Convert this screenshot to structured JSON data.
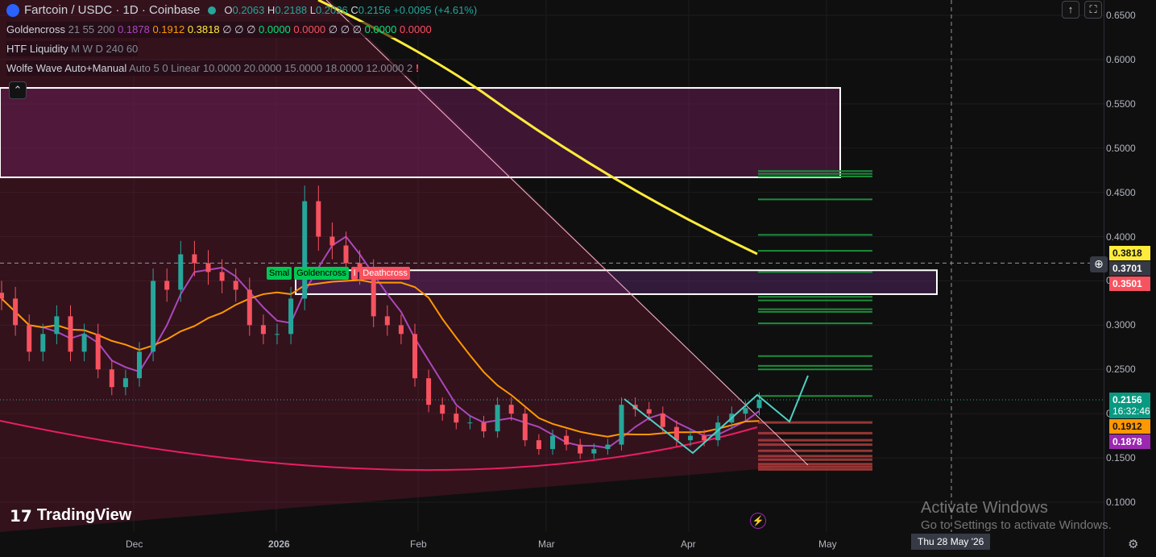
{
  "header": {
    "symbol": "Fartcoin / USDC · 1D · Coinbase",
    "o_label": "O",
    "open": "0.2063",
    "h_label": "H",
    "high": "0.2188",
    "l_label": "L",
    "low": "0.2026",
    "c_label": "C",
    "close": "0.2156",
    "change": "+0.0095 (+4.61%)"
  },
  "indicators": [
    {
      "name": "Goldencross",
      "params": "21 55 200",
      "values": [
        {
          "v": "0.1878",
          "c": "#ab47bc"
        },
        {
          "v": "0.1912",
          "c": "#ff9800"
        },
        {
          "v": "0.3818",
          "c": "#ffeb3b"
        },
        {
          "v": "∅ ∅ ∅",
          "c": "#d1d4dc"
        },
        {
          "v": "0.0000",
          "c": "#00e676"
        },
        {
          "v": "0.0000",
          "c": "#f7525f"
        },
        {
          "v": "∅ ∅ ∅",
          "c": "#d1d4dc"
        },
        {
          "v": "0.0000",
          "c": "#00e676"
        },
        {
          "v": "0.0000",
          "c": "#f7525f"
        }
      ]
    },
    {
      "name": "HTF Liquidity",
      "params": "M W D 240 60"
    },
    {
      "name": "Wolfe Wave Auto+Manual",
      "params": "Auto 5 0 Linear 10.0000 20.0000 15.0000 18.0000 12.0000 2"
    }
  ],
  "price_axis": [
    "0.6500",
    "0.6000",
    "0.5500",
    "0.5000",
    "0.4500",
    "0.4000",
    "0.3500",
    "0.3000",
    "0.2500",
    "0.2000",
    "0.1500",
    "0.1000"
  ],
  "price_tags": [
    {
      "text": "0.3818",
      "price": 0.3818,
      "bg": "#ffeb3b",
      "fg": "#131313"
    },
    {
      "text": "0.3701",
      "price": 0.3701,
      "bg": "#363a45",
      "fg": "#ffffff"
    },
    {
      "text": "0.3501",
      "price": 0.3501,
      "bg": "#f7525f",
      "fg": "#ffffff"
    },
    {
      "text": "0.2156",
      "sub": "16:32:46",
      "price": 0.2156,
      "bg": "#089981",
      "fg": "#ffffff"
    },
    {
      "text": "0.1912",
      "price": 0.1912,
      "bg": "#ff9800",
      "fg": "#131313"
    },
    {
      "text": "0.1878",
      "price": 0.1878,
      "bg": "#9c27b0",
      "fg": "#ffffff"
    }
  ],
  "time_axis": [
    "Dec",
    "2026",
    "Feb",
    "Mar",
    "Apr",
    "May"
  ],
  "crosshair_date": "Thu 28 May '26",
  "signals": {
    "small": "Smal",
    "golden": "Goldencross",
    "small2": "l",
    "death": "Deathcross"
  },
  "branding": "TradingView",
  "watermark": {
    "title": "Activate Windows",
    "sub": "Go to Settings to activate Windows."
  },
  "chart_data": {
    "type": "candlestick",
    "start": "2025-11-02",
    "step_days": 3,
    "closes": [
      0.33,
      0.3,
      0.27,
      0.29,
      0.31,
      0.27,
      0.29,
      0.25,
      0.23,
      0.24,
      0.27,
      0.35,
      0.34,
      0.38,
      0.37,
      0.36,
      0.35,
      0.34,
      0.3,
      0.29,
      0.29,
      0.33,
      0.44,
      0.4,
      0.39,
      0.37,
      0.36,
      0.31,
      0.3,
      0.29,
      0.24,
      0.21,
      0.2,
      0.19,
      0.19,
      0.18,
      0.21,
      0.2,
      0.17,
      0.16,
      0.175,
      0.165,
      0.155,
      0.16,
      0.165,
      0.21,
      0.205,
      0.2,
      0.185,
      0.17,
      0.175,
      0.17,
      0.19,
      0.2,
      0.2063,
      0.2156
    ],
    "ylim": [
      0.08,
      0.66
    ],
    "up_color": "#26a69a",
    "down_color": "#f7525f",
    "zones": [
      {
        "from": 0.467,
        "to": 0.568
      },
      {
        "from": 0.335,
        "to": 0.362
      }
    ],
    "liquidity_green": [
      0.474,
      0.471,
      0.468,
      0.442,
      0.402,
      0.384,
      0.36,
      0.332,
      0.328,
      0.318,
      0.315,
      0.302,
      0.265,
      0.254,
      0.25,
      0.22
    ],
    "liquidity_red": [
      0.19,
      0.178,
      0.17,
      0.165,
      0.158,
      0.152,
      0.148,
      0.143,
      0.14,
      0.137
    ]
  }
}
